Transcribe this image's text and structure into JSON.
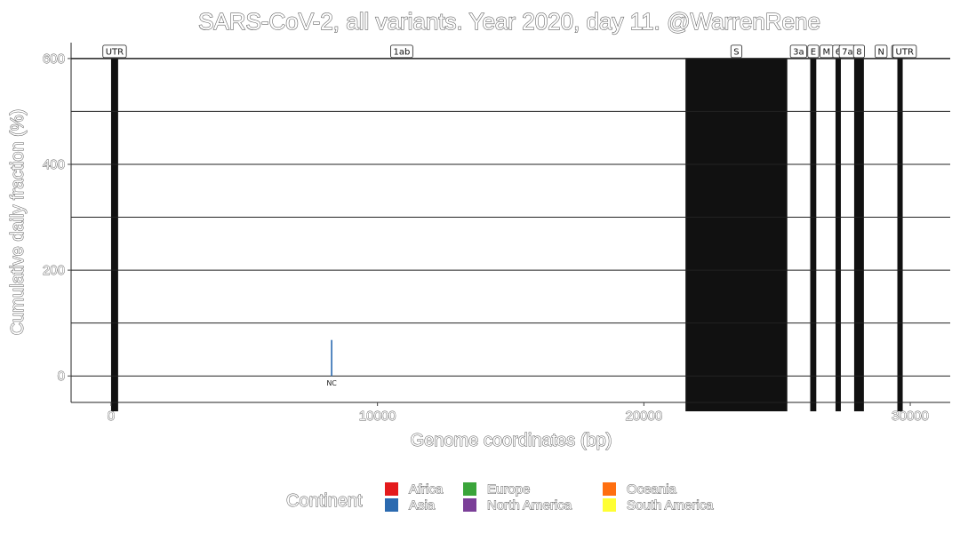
{
  "chart_data": {
    "type": "bar",
    "title": "SARS-CoV-2, all variants. Year 2020, day 11. @WarrenRene",
    "xlabel": "Genome coordinates (bp)",
    "ylabel": "Cumulative daily fraction (%)",
    "xlim": [
      -1500,
      31500
    ],
    "ylim": [
      -50,
      630
    ],
    "x_ticks": [
      0,
      10000,
      20000,
      30000
    ],
    "x_tick_labels": [
      "0",
      "10000",
      "20000",
      "30000"
    ],
    "y_ticks": [
      0,
      200,
      400,
      600
    ],
    "y_tick_labels": [
      "0",
      "200",
      "400",
      "600"
    ],
    "y_gridlines": [
      0,
      100,
      200,
      300,
      400,
      500,
      600
    ],
    "genes": [
      {
        "label": "UTR",
        "start": 0,
        "end": 265,
        "shaded": true
      },
      {
        "label": "1ab",
        "start": 266,
        "end": 21555,
        "shaded": false
      },
      {
        "label": "S",
        "start": 21563,
        "end": 25384,
        "shaded": true
      },
      {
        "label": "3a",
        "start": 25393,
        "end": 26220,
        "shaded": false
      },
      {
        "label": "E",
        "start": 26245,
        "end": 26472,
        "shaded": true
      },
      {
        "label": "M",
        "start": 26523,
        "end": 27191,
        "shaded": false
      },
      {
        "label": "6",
        "start": 27202,
        "end": 27387,
        "shaded": true
      },
      {
        "label": "7a",
        "start": 27394,
        "end": 27887,
        "shaded": false
      },
      {
        "label": "8",
        "start": 27894,
        "end": 28259,
        "shaded": true
      },
      {
        "label": "N",
        "start": 28274,
        "end": 29533,
        "shaded": false
      },
      {
        "label": "10",
        "start": 29558,
        "end": 29674,
        "shaded": true
      },
      {
        "label": "UTR",
        "start": 29675,
        "end": 29903,
        "shaded": false
      }
    ],
    "series": [
      {
        "continent": "Asia",
        "x": 8280,
        "value": 68,
        "label": "NC",
        "color": "#2b6ab0"
      }
    ],
    "legend": {
      "title": "Continent",
      "position": "bottom",
      "items": [
        {
          "name": "Africa",
          "color": "#e41a1c"
        },
        {
          "name": "Asia",
          "color": "#2b6ab0"
        },
        {
          "name": "Europe",
          "color": "#3aa53a"
        },
        {
          "name": "North America",
          "color": "#7b3f98"
        },
        {
          "name": "Oceania",
          "color": "#ff6f0f"
        },
        {
          "name": "South America",
          "color": "#ffff33"
        }
      ]
    }
  }
}
